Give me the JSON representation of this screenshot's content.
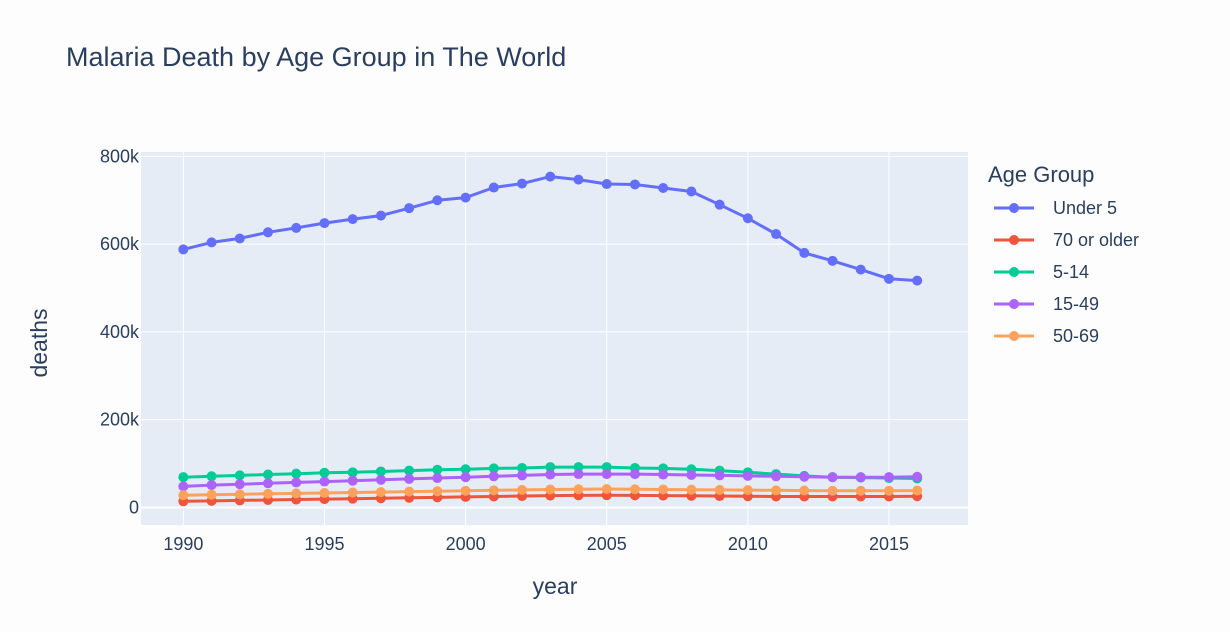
{
  "chart_data": {
    "type": "line",
    "title": "Malaria Death by Age Group in The World",
    "xlabel": "year",
    "ylabel": "deaths",
    "xlim": [
      1988.5,
      2017.8
    ],
    "ylim": [
      -40000,
      810000
    ],
    "x_ticks": [
      1990,
      1995,
      2000,
      2005,
      2010,
      2015
    ],
    "x_tick_labels": [
      "1990",
      "1995",
      "2000",
      "2005",
      "2010",
      "2015"
    ],
    "y_ticks": [
      0,
      200000,
      400000,
      600000,
      800000
    ],
    "y_tick_labels": [
      "0",
      "200k",
      "400k",
      "600k",
      "800k"
    ],
    "grid": true,
    "plot_background": "#e5ecf6",
    "legend": {
      "title": "Age Group",
      "placement": "right"
    },
    "x": [
      1990,
      1991,
      1992,
      1993,
      1994,
      1995,
      1996,
      1997,
      1998,
      1999,
      2000,
      2001,
      2002,
      2003,
      2004,
      2005,
      2006,
      2007,
      2008,
      2009,
      2010,
      2011,
      2012,
      2013,
      2014,
      2015,
      2016
    ],
    "series": [
      {
        "name": "Under 5",
        "color": "#636efa",
        "values": [
          588000,
          604000,
          613000,
          627000,
          637000,
          648000,
          657000,
          665000,
          682000,
          700000,
          706000,
          729000,
          738000,
          754000,
          747000,
          737000,
          736000,
          728000,
          720000,
          690000,
          659000,
          623000,
          580000,
          562000,
          542000,
          521000,
          517000
        ]
      },
      {
        "name": "70 or older",
        "color": "#ef553b",
        "values": [
          14000,
          15000,
          16000,
          17000,
          18000,
          19000,
          20000,
          21000,
          22000,
          23000,
          24000,
          25000,
          26000,
          27000,
          27500,
          28000,
          27500,
          27000,
          26500,
          26000,
          25500,
          25000,
          25000,
          25000,
          25000,
          25000,
          25500
        ]
      },
      {
        "name": "5-14",
        "color": "#00cc96",
        "values": [
          69000,
          71000,
          73000,
          75000,
          77000,
          79000,
          80000,
          82000,
          84000,
          86000,
          87000,
          89000,
          90000,
          92000,
          92000,
          92000,
          90000,
          89000,
          87000,
          84000,
          80000,
          76000,
          72000,
          69000,
          68000,
          67000,
          66000
        ]
      },
      {
        "name": "15-49",
        "color": "#ab63fa",
        "values": [
          48000,
          51000,
          53000,
          55000,
          57000,
          59000,
          61000,
          63000,
          65000,
          67000,
          69000,
          71000,
          73000,
          75000,
          76000,
          76000,
          76000,
          75000,
          74000,
          73000,
          72000,
          71000,
          70000,
          69000,
          69000,
          69000,
          70000
        ]
      },
      {
        "name": "50-69",
        "color": "#ffa15a",
        "values": [
          28000,
          29000,
          30000,
          31000,
          32000,
          33000,
          34000,
          35000,
          36000,
          37000,
          38000,
          39000,
          40000,
          41000,
          41500,
          42000,
          41500,
          41000,
          40500,
          40000,
          39500,
          39000,
          38500,
          38000,
          38000,
          38000,
          38500
        ]
      }
    ]
  }
}
